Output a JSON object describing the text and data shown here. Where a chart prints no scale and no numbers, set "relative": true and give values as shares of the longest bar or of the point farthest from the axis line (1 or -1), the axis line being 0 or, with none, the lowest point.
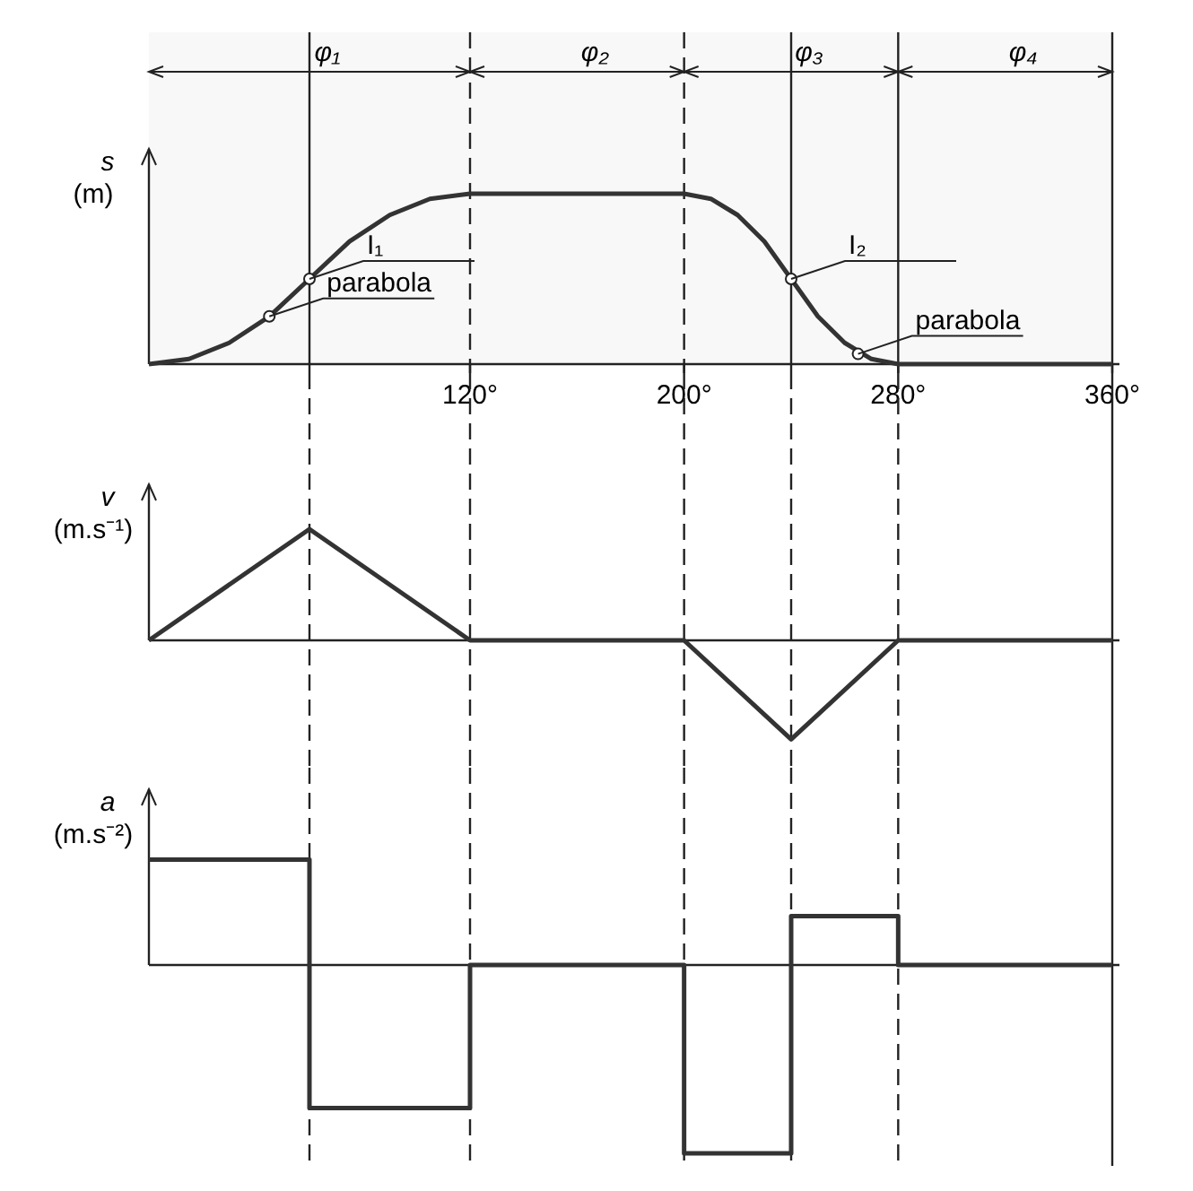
{
  "chart_data": [
    {
      "type": "line",
      "relative": true,
      "ylabel": "s (m)",
      "xlim": [
        0,
        360
      ],
      "xticks": [
        {
          "value": 120,
          "label": "120°"
        },
        {
          "value": 200,
          "label": "200°"
        },
        {
          "value": 280,
          "label": "280°"
        },
        {
          "value": 360,
          "label": "360°"
        }
      ],
      "series": [
        {
          "color": "#333333",
          "x": [
            0,
            15,
            30,
            45,
            60,
            75,
            90,
            105,
            120,
            200,
            210,
            220,
            230,
            240,
            250,
            260,
            270,
            280,
            360
          ],
          "values": [
            0,
            0.03,
            0.125,
            0.28,
            0.5,
            0.72,
            0.875,
            0.97,
            1,
            1,
            0.97,
            0.875,
            0.72,
            0.5,
            0.28,
            0.125,
            0.03,
            0,
            0
          ]
        }
      ],
      "bands": [
        {
          "axis": "x",
          "from": 0,
          "to": 120,
          "label": "φ₁"
        },
        {
          "axis": "x",
          "from": 120,
          "to": 200,
          "label": "φ₂"
        },
        {
          "axis": "x",
          "from": 200,
          "to": 280,
          "label": "φ₃"
        },
        {
          "axis": "x",
          "from": 280,
          "to": 360,
          "label": "φ₄"
        }
      ],
      "ref_lines": [
        {
          "axis": "x",
          "value": 60,
          "line_style": "solid"
        },
        {
          "axis": "x",
          "value": 120,
          "line_style": "dashed"
        },
        {
          "axis": "x",
          "value": 200,
          "line_style": "dashed"
        },
        {
          "axis": "x",
          "value": 240,
          "line_style": "solid"
        },
        {
          "axis": "x",
          "value": 280,
          "line_style": "solid"
        },
        {
          "axis": "x",
          "value": 360,
          "line_style": "solid"
        }
      ],
      "annotations": [
        {
          "text": "I₁",
          "x": 60,
          "y": 0.5
        },
        {
          "text": "I₂",
          "x": 240,
          "y": 0.5
        },
        {
          "text": "parabola",
          "x": 45,
          "y": 0.28
        },
        {
          "text": "parabola",
          "x": 265,
          "y": 0.06
        }
      ]
    },
    {
      "type": "line",
      "relative": true,
      "ylabel": "v (m.s⁻¹)",
      "xlim": [
        0,
        360
      ],
      "series": [
        {
          "color": "#333333",
          "x": [
            0,
            60,
            120,
            200,
            240,
            280,
            360
          ],
          "values": [
            0,
            1,
            0,
            0,
            -0.89,
            0,
            0
          ]
        }
      ],
      "ref_lines": [
        {
          "axis": "x",
          "value": 60,
          "line_style": "dashed"
        },
        {
          "axis": "x",
          "value": 120,
          "line_style": "dashed"
        },
        {
          "axis": "x",
          "value": 200,
          "line_style": "dashed"
        },
        {
          "axis": "x",
          "value": 240,
          "line_style": "dashed"
        },
        {
          "axis": "x",
          "value": 280,
          "line_style": "dashed"
        },
        {
          "axis": "x",
          "value": 360,
          "line_style": "solid"
        }
      ]
    },
    {
      "type": "step",
      "relative": true,
      "ylabel": "a (m.s⁻²)",
      "xlim": [
        0,
        360
      ],
      "series": [
        {
          "color": "#333333",
          "x": [
            0,
            60,
            120,
            200,
            240,
            280,
            360
          ],
          "values": [
            0.56,
            -0.76,
            0,
            -1,
            0.26,
            0,
            0
          ]
        }
      ],
      "ref_lines": [
        {
          "axis": "x",
          "value": 60,
          "line_style": "dashed"
        },
        {
          "axis": "x",
          "value": 120,
          "line_style": "dashed"
        },
        {
          "axis": "x",
          "value": 200,
          "line_style": "dashed"
        },
        {
          "axis": "x",
          "value": 240,
          "line_style": "dashed"
        },
        {
          "axis": "x",
          "value": 280,
          "line_style": "dashed"
        },
        {
          "axis": "x",
          "value": 360,
          "line_style": "solid"
        }
      ]
    }
  ]
}
